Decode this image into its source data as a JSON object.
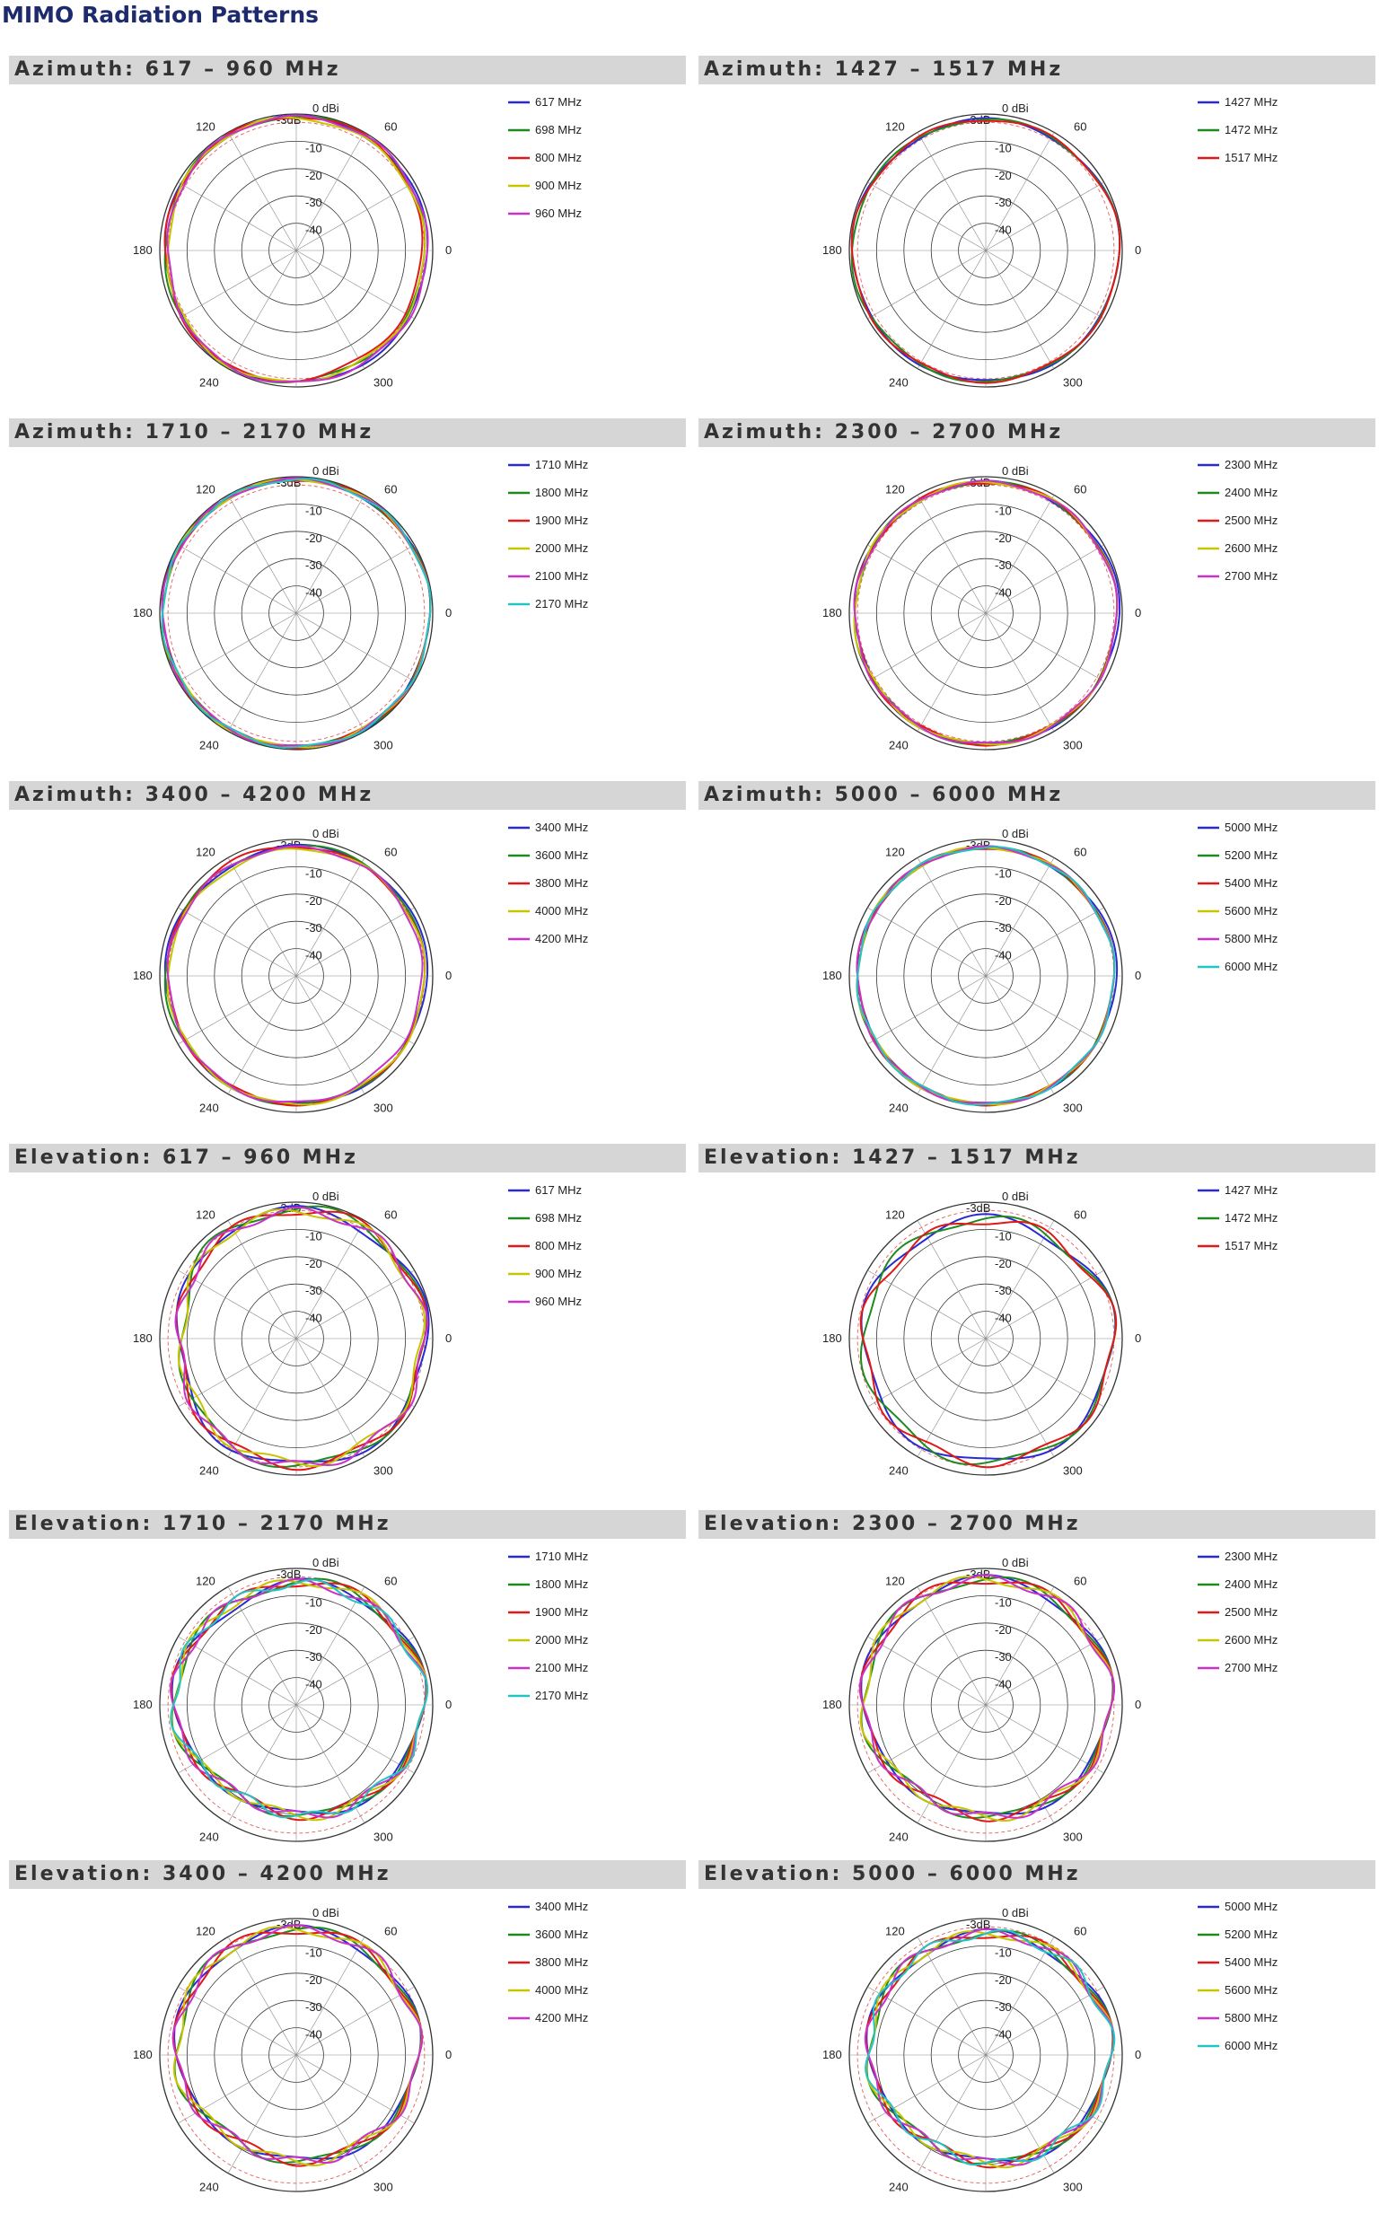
{
  "page": {
    "title": "MIMO Radiation Patterns"
  },
  "axes": {
    "rings": [
      "0 dBi",
      "-10",
      "-20",
      "-30",
      "-40"
    ],
    "angles": [
      "0",
      "60",
      "120",
      "180",
      "240",
      "300"
    ],
    "ref_3db": "-3dB"
  },
  "colors": {
    "blue": "#2a2ad4",
    "green": "#1f8a1f",
    "red": "#e01818",
    "yellow": "#c8c400",
    "magenta": "#c832c8",
    "cyan": "#22c4c4",
    "ring": "#333333",
    "spoke": "#888888",
    "ref": "#e06060",
    "header_bg": "#d6d6d6",
    "title": "#1d2a6e"
  },
  "panels": [
    {
      "id": "az-617",
      "title": "Azimuth:  617 – 960 MHz",
      "legend": [
        "617 MHz",
        "698 MHz",
        "800 MHz",
        "900 MHz",
        "960 MHz"
      ],
      "colors": [
        "blue",
        "green",
        "red",
        "yellow",
        "magenta"
      ]
    },
    {
      "id": "az-1427",
      "title": "Azimuth: 1427 – 1517 MHz",
      "legend": [
        "1427 MHz",
        "1472 MHz",
        "1517 MHz"
      ],
      "colors": [
        "blue",
        "green",
        "red"
      ]
    },
    {
      "id": "az-1710",
      "title": "Azimuth: 1710 – 2170 MHz",
      "legend": [
        "1710 MHz",
        "1800 MHz",
        "1900 MHz",
        "2000 MHz",
        "2100 MHz",
        "2170 MHz"
      ],
      "colors": [
        "blue",
        "green",
        "red",
        "yellow",
        "magenta",
        "cyan"
      ]
    },
    {
      "id": "az-2300",
      "title": "Azimuth:  2300 – 2700 MHz",
      "legend": [
        "2300 MHz",
        "2400 MHz",
        "2500 MHz",
        "2600 MHz",
        "2700 MHz"
      ],
      "colors": [
        "blue",
        "green",
        "red",
        "yellow",
        "magenta"
      ]
    },
    {
      "id": "az-3400",
      "title": "Azimuth: 3400 – 4200 MHz",
      "legend": [
        "3400 MHz",
        "3600 MHz",
        "3800 MHz",
        "4000 MHz",
        "4200 MHz"
      ],
      "colors": [
        "blue",
        "green",
        "red",
        "yellow",
        "magenta"
      ]
    },
    {
      "id": "az-5000",
      "title": "Azimuth: 5000 – 6000 MHz",
      "legend": [
        "5000 MHz",
        "5200 MHz",
        "5400 MHz",
        "5600 MHz",
        "5800 MHz",
        "6000 MHz"
      ],
      "colors": [
        "blue",
        "green",
        "red",
        "yellow",
        "magenta",
        "cyan"
      ]
    },
    {
      "id": "el-617",
      "title": "Elevation:  617 – 960 MHz",
      "legend": [
        "617 MHz",
        "698 MHz",
        "800 MHz",
        "900 MHz",
        "960 MHz"
      ],
      "colors": [
        "blue",
        "green",
        "red",
        "yellow",
        "magenta"
      ]
    },
    {
      "id": "el-1427",
      "title": "Elevation: 1427 – 1517 MHz",
      "legend": [
        "1427 MHz",
        "1472 MHz",
        "1517 MHz"
      ],
      "colors": [
        "blue",
        "green",
        "red"
      ]
    },
    {
      "id": "el-1710",
      "title": "Elevation: 1710 – 2170 MHz",
      "legend": [
        "1710 MHz",
        "1800 MHz",
        "1900 MHz",
        "2000 MHz",
        "2100 MHz",
        "2170 MHz"
      ],
      "colors": [
        "blue",
        "green",
        "red",
        "yellow",
        "magenta",
        "cyan"
      ]
    },
    {
      "id": "el-2300",
      "title": "Elevation:  2300 – 2700 MHz",
      "legend": [
        "2300 MHz",
        "2400 MHz",
        "2500 MHz",
        "2600 MHz",
        "2700 MHz"
      ],
      "colors": [
        "blue",
        "green",
        "red",
        "yellow",
        "magenta"
      ]
    },
    {
      "id": "el-3400",
      "title": "Elevation: 3400 – 4200 MHz",
      "legend": [
        "3400 MHz",
        "3600 MHz",
        "3800 MHz",
        "4000 MHz",
        "4200 MHz"
      ],
      "colors": [
        "blue",
        "green",
        "red",
        "yellow",
        "magenta"
      ]
    },
    {
      "id": "el-5000",
      "title": "Elevation: 5000 – 6000 MHz",
      "legend": [
        "5000 MHz",
        "5200 MHz",
        "5400 MHz",
        "5600 MHz",
        "5800 MHz",
        "6000 MHz"
      ],
      "colors": [
        "blue",
        "green",
        "red",
        "yellow",
        "magenta",
        "cyan"
      ]
    }
  ],
  "chart_data": [
    {
      "type": "polar",
      "title": "Azimuth:  617 – 960 MHz",
      "r_unit": "dBi",
      "rlim": [
        -50,
        0
      ],
      "angles_deg": [
        0,
        60,
        120,
        180,
        240,
        300
      ],
      "series": [
        {
          "name": "617 MHz",
          "values": [
            -2,
            -1,
            -1,
            -2,
            -1,
            -2
          ]
        },
        {
          "name": "698 MHz",
          "values": [
            -3,
            -1,
            -1,
            -2,
            -1,
            -3
          ]
        },
        {
          "name": "800 MHz",
          "values": [
            -4,
            -1,
            -1,
            -2,
            -1,
            -4
          ]
        },
        {
          "name": "900 MHz",
          "values": [
            -3,
            -2,
            -1,
            -3,
            -1,
            -3
          ]
        },
        {
          "name": "960 MHz",
          "values": [
            -2,
            -1,
            -1,
            -3,
            -1,
            -2
          ]
        }
      ]
    },
    {
      "type": "polar",
      "title": "Azimuth: 1427 – 1517 MHz",
      "r_unit": "dBi",
      "rlim": [
        -50,
        0
      ],
      "angles_deg": [
        0,
        60,
        120,
        180,
        240,
        300
      ],
      "series": [
        {
          "name": "1427 MHz",
          "values": [
            -1,
            -2,
            -2,
            -1,
            -2,
            -2
          ]
        },
        {
          "name": "1472 MHz",
          "values": [
            -1,
            -2,
            -2,
            -1,
            -2,
            -2
          ]
        },
        {
          "name": "1517 MHz",
          "values": [
            -1,
            -2,
            -2,
            -1,
            -2,
            -2
          ]
        }
      ]
    },
    {
      "type": "polar",
      "title": "Azimuth: 1710 – 2170 MHz",
      "r_unit": "dBi",
      "rlim": [
        -50,
        0
      ],
      "angles_deg": [
        0,
        60,
        120,
        180,
        240,
        300
      ],
      "series": [
        {
          "name": "1710 MHz",
          "values": [
            -1,
            -1,
            -1,
            -1,
            -1,
            -1
          ]
        },
        {
          "name": "1800 MHz",
          "values": [
            -1,
            -1,
            -1,
            -1,
            -1,
            -1
          ]
        },
        {
          "name": "1900 MHz",
          "values": [
            -1,
            -1,
            -1,
            -1,
            -1,
            -1
          ]
        },
        {
          "name": "2000 MHz",
          "values": [
            -1,
            -1,
            -1,
            -1,
            -1,
            -1
          ]
        },
        {
          "name": "2100 MHz",
          "values": [
            -1,
            -1,
            -1,
            -1,
            -1,
            -1
          ]
        },
        {
          "name": "2170 MHz",
          "values": [
            -1,
            -1,
            -1,
            -1,
            -1,
            -1
          ]
        }
      ]
    },
    {
      "type": "polar",
      "title": "Azimuth:  2300 – 2700 MHz",
      "r_unit": "dBi",
      "rlim": [
        -50,
        0
      ],
      "angles_deg": [
        0,
        60,
        120,
        180,
        240,
        300
      ],
      "series": [
        {
          "name": "2300 MHz",
          "values": [
            -1,
            -2,
            -2,
            -2,
            -2,
            -2
          ]
        },
        {
          "name": "2400 MHz",
          "values": [
            -2,
            -2,
            -2,
            -2,
            -2,
            -2
          ]
        },
        {
          "name": "2500 MHz",
          "values": [
            -2,
            -2,
            -2,
            -2,
            -2,
            -2
          ]
        },
        {
          "name": "2600 MHz",
          "values": [
            -2,
            -2,
            -2,
            -2,
            -2,
            -2
          ]
        },
        {
          "name": "2700 MHz",
          "values": [
            -2,
            -2,
            -2,
            -2,
            -2,
            -2
          ]
        }
      ]
    },
    {
      "type": "polar",
      "title": "Azimuth: 3400 – 4200 MHz",
      "r_unit": "dBi",
      "rlim": [
        -50,
        0
      ],
      "angles_deg": [
        0,
        60,
        120,
        180,
        240,
        300
      ],
      "series": [
        {
          "name": "3400 MHz",
          "values": [
            -2,
            -2,
            -3,
            -2,
            -3,
            -3
          ]
        },
        {
          "name": "3600 MHz",
          "values": [
            -3,
            -2,
            -3,
            -2,
            -3,
            -3
          ]
        },
        {
          "name": "3800 MHz",
          "values": [
            -3,
            -3,
            -2,
            -3,
            -3,
            -3
          ]
        },
        {
          "name": "4000 MHz",
          "values": [
            -3,
            -3,
            -4,
            -3,
            -3,
            -3
          ]
        },
        {
          "name": "4200 MHz",
          "values": [
            -4,
            -3,
            -3,
            -3,
            -3,
            -4
          ]
        }
      ]
    },
    {
      "type": "polar",
      "title": "Azimuth: 5000 – 6000 MHz",
      "r_unit": "dBi",
      "rlim": [
        -50,
        0
      ],
      "angles_deg": [
        0,
        60,
        120,
        180,
        240,
        300
      ],
      "series": [
        {
          "name": "5000 MHz",
          "values": [
            -2,
            -3,
            -3,
            -3,
            -3,
            -3
          ]
        },
        {
          "name": "5200 MHz",
          "values": [
            -3,
            -3,
            -3,
            -3,
            -3,
            -3
          ]
        },
        {
          "name": "5400 MHz",
          "values": [
            -3,
            -3,
            -3,
            -3,
            -3,
            -3
          ]
        },
        {
          "name": "5600 MHz",
          "values": [
            -3,
            -3,
            -3,
            -3,
            -3,
            -3
          ]
        },
        {
          "name": "5800 MHz",
          "values": [
            -3,
            -3,
            -3,
            -3,
            -3,
            -3
          ]
        },
        {
          "name": "6000 MHz",
          "values": [
            -3,
            -3,
            -3,
            -3,
            -3,
            -3
          ]
        }
      ]
    },
    {
      "type": "polar",
      "title": "Elevation:  617 – 960 MHz",
      "r_unit": "dBi",
      "rlim": [
        -50,
        0
      ],
      "angles_deg": [
        0,
        60,
        120,
        180,
        240,
        300
      ],
      "series": [
        {
          "name": "617 MHz",
          "values": [
            -2,
            -3,
            -3,
            -7,
            -4,
            -3
          ]
        },
        {
          "name": "698 MHz",
          "values": [
            -3,
            -2,
            -3,
            -8,
            -4,
            -3
          ]
        },
        {
          "name": "800 MHz",
          "values": [
            -3,
            -2,
            -4,
            -7,
            -4,
            -3
          ]
        },
        {
          "name": "900 MHz",
          "values": [
            -4,
            -3,
            -4,
            -8,
            -5,
            -4
          ]
        },
        {
          "name": "960 MHz",
          "values": [
            -3,
            -3,
            -4,
            -7,
            -4,
            -3
          ]
        }
      ]
    },
    {
      "type": "polar",
      "title": "Elevation: 1427 – 1517 MHz",
      "r_unit": "dBi",
      "rlim": [
        -50,
        0
      ],
      "angles_deg": [
        0,
        60,
        120,
        180,
        240,
        300
      ],
      "series": [
        {
          "name": "1427 MHz",
          "values": [
            -3,
            -6,
            -6,
            -5,
            -5,
            -4
          ]
        },
        {
          "name": "1472 MHz",
          "values": [
            -3,
            -6,
            -6,
            -5,
            -5,
            -4
          ]
        },
        {
          "name": "1517 MHz",
          "values": [
            -3,
            -6,
            -7,
            -5,
            -5,
            -4
          ]
        }
      ]
    },
    {
      "type": "polar",
      "title": "Elevation: 1710 – 2170 MHz",
      "r_unit": "dBi",
      "rlim": [
        -50,
        0
      ],
      "angles_deg": [
        0,
        60,
        120,
        180,
        240,
        300
      ],
      "series": [
        {
          "name": "1710 MHz",
          "values": [
            -3,
            -4,
            -7,
            -5,
            -11,
            -8
          ]
        },
        {
          "name": "1800 MHz",
          "values": [
            -3,
            -4,
            -6,
            -5,
            -11,
            -8
          ]
        },
        {
          "name": "1900 MHz",
          "values": [
            -3,
            -4,
            -6,
            -5,
            -11,
            -8
          ]
        },
        {
          "name": "2000 MHz",
          "values": [
            -3,
            -4,
            -6,
            -5,
            -11,
            -8
          ]
        },
        {
          "name": "2100 MHz",
          "values": [
            -3,
            -5,
            -6,
            -5,
            -11,
            -8
          ]
        },
        {
          "name": "2170 MHz",
          "values": [
            -3,
            -5,
            -6,
            -5,
            -11,
            -8
          ]
        }
      ]
    },
    {
      "type": "polar",
      "title": "Elevation:  2300 – 2700 MHz",
      "r_unit": "dBi",
      "rlim": [
        -50,
        0
      ],
      "angles_deg": [
        0,
        60,
        120,
        180,
        240,
        300
      ],
      "series": [
        {
          "name": "2300 MHz",
          "values": [
            -4,
            -4,
            -4,
            -5,
            -10,
            -8
          ]
        },
        {
          "name": "2400 MHz",
          "values": [
            -4,
            -4,
            -4,
            -5,
            -10,
            -8
          ]
        },
        {
          "name": "2500 MHz",
          "values": [
            -4,
            -4,
            -4,
            -5,
            -10,
            -8
          ]
        },
        {
          "name": "2600 MHz",
          "values": [
            -4,
            -4,
            -4,
            -5,
            -10,
            -8
          ]
        },
        {
          "name": "2700 MHz",
          "values": [
            -4,
            -4,
            -4,
            -5,
            -10,
            -8
          ]
        }
      ]
    },
    {
      "type": "polar",
      "title": "Elevation: 3400 – 4200 MHz",
      "r_unit": "dBi",
      "rlim": [
        -50,
        0
      ],
      "angles_deg": [
        0,
        60,
        120,
        180,
        240,
        300
      ],
      "series": [
        {
          "name": "3400 MHz",
          "values": [
            -5,
            -4,
            -4,
            -6,
            -12,
            -10
          ]
        },
        {
          "name": "3600 MHz",
          "values": [
            -5,
            -4,
            -4,
            -6,
            -12,
            -10
          ]
        },
        {
          "name": "3800 MHz",
          "values": [
            -5,
            -4,
            -4,
            -6,
            -12,
            -10
          ]
        },
        {
          "name": "4000 MHz",
          "values": [
            -5,
            -4,
            -4,
            -6,
            -12,
            -10
          ]
        },
        {
          "name": "4200 MHz",
          "values": [
            -5,
            -4,
            -4,
            -6,
            -12,
            -10
          ]
        }
      ]
    },
    {
      "type": "polar",
      "title": "Elevation: 5000 – 6000 MHz",
      "r_unit": "dBi",
      "rlim": [
        -50,
        0
      ],
      "angles_deg": [
        0,
        60,
        120,
        180,
        240,
        300
      ],
      "series": [
        {
          "name": "5000 MHz",
          "values": [
            -4,
            -5,
            -6,
            -7,
            -12,
            -9
          ]
        },
        {
          "name": "5200 MHz",
          "values": [
            -4,
            -5,
            -6,
            -7,
            -12,
            -9
          ]
        },
        {
          "name": "5400 MHz",
          "values": [
            -4,
            -5,
            -6,
            -7,
            -12,
            -9
          ]
        },
        {
          "name": "5600 MHz",
          "values": [
            -4,
            -5,
            -6,
            -7,
            -12,
            -9
          ]
        },
        {
          "name": "5800 MHz",
          "values": [
            -4,
            -5,
            -6,
            -7,
            -12,
            -9
          ]
        },
        {
          "name": "6000 MHz",
          "values": [
            -4,
            -5,
            -6,
            -7,
            -12,
            -9
          ]
        }
      ]
    }
  ]
}
